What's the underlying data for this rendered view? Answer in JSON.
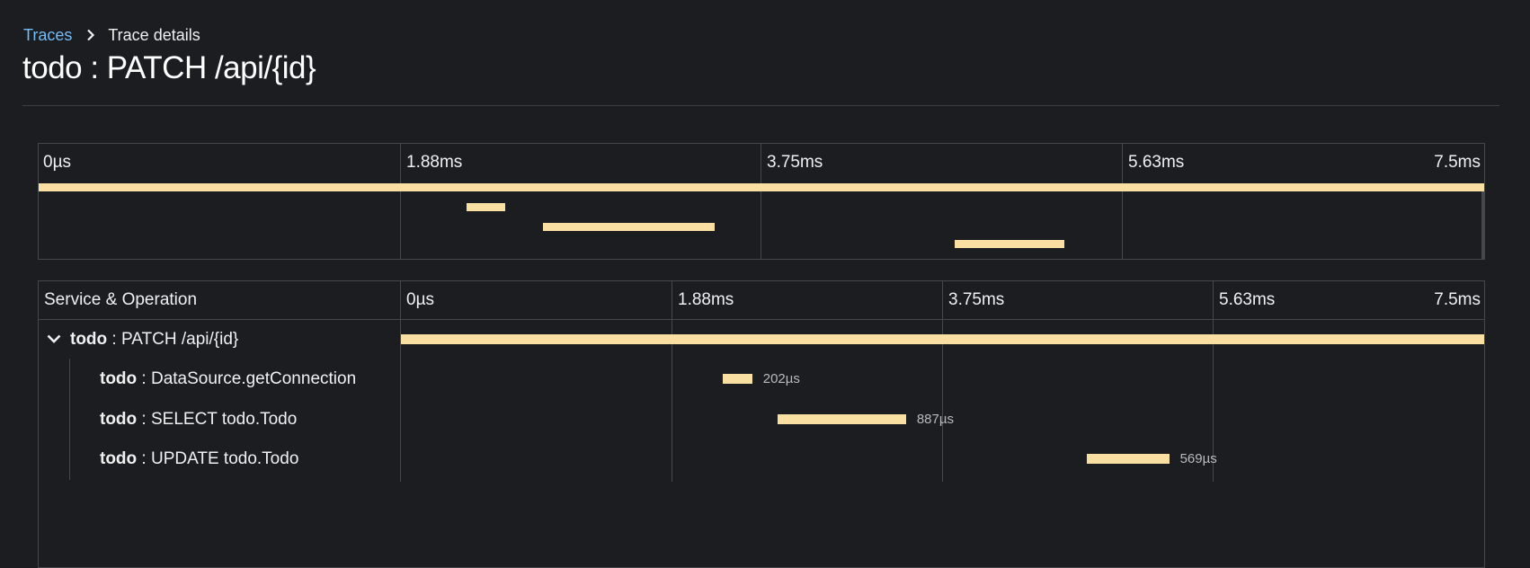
{
  "breadcrumb": {
    "link": "Traces",
    "current": "Trace details"
  },
  "title": "todo : PATCH /api/{id}",
  "ticks": [
    "0µs",
    "1.88ms",
    "3.75ms",
    "5.63ms",
    "7.5ms"
  ],
  "table": {
    "header_label": "Service & Operation"
  },
  "spans": [
    {
      "service": "todo",
      "operation": " : PATCH /api/{id}",
      "start_ms": 0,
      "duration_ms": 7.5,
      "duration_label": ""
    },
    {
      "service": "todo",
      "operation": " : DataSource.getConnection",
      "start_ms": 2.23,
      "duration_ms": 0.202,
      "duration_label": "202µs"
    },
    {
      "service": "todo",
      "operation": " : SELECT todo.Todo",
      "start_ms": 2.61,
      "duration_ms": 0.887,
      "duration_label": "887µs"
    },
    {
      "service": "todo",
      "operation": " : UPDATE todo.Todo",
      "start_ms": 4.75,
      "duration_ms": 0.569,
      "duration_label": "569µs"
    }
  ],
  "colors": {
    "bar": "#f9e0a2",
    "link": "#73bcf7",
    "background": "#1b1d21",
    "grid": "#44474b"
  },
  "icons": {
    "breadcrumb_separator": "chevron-right-icon",
    "row_toggle": "chevron-down-icon"
  }
}
